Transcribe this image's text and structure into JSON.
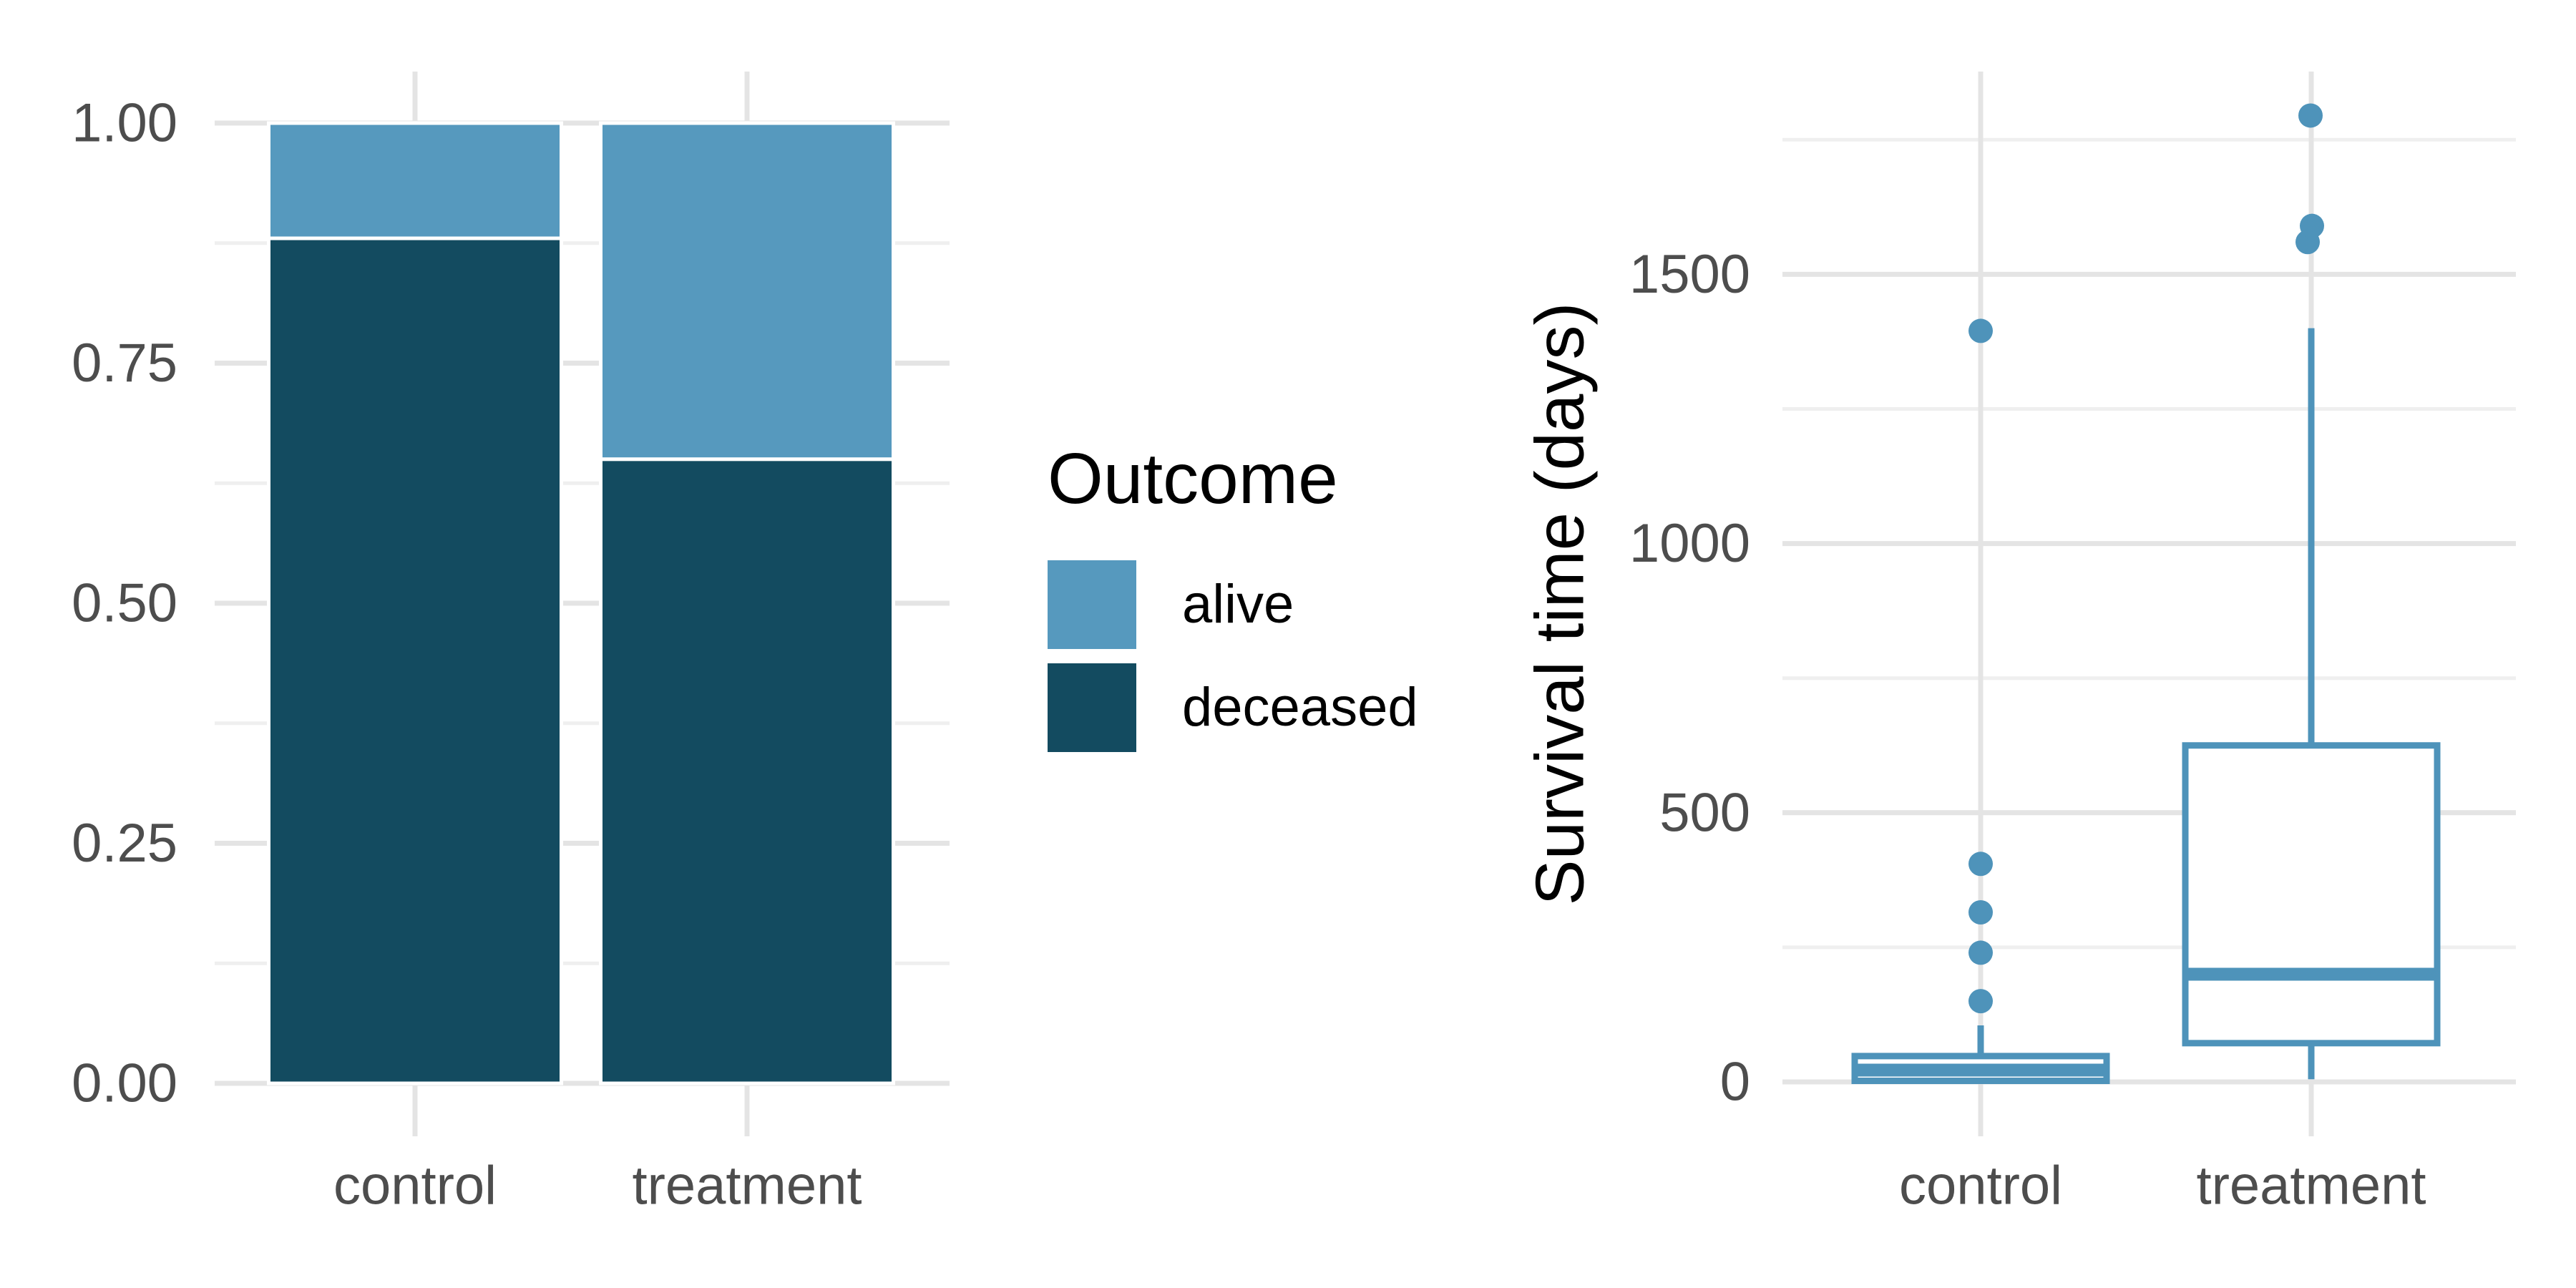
{
  "colors": {
    "background": "#ffffff",
    "alive": "#5699be",
    "deceased": "#134b60",
    "boxplot_blue": "#4e93ba",
    "grid_major": "#e4e4e4",
    "grid_minor": "#efefef",
    "axis_text": "#4d4d4d",
    "title_text": "#000000",
    "bar_separator": "#ffffff"
  },
  "legend": {
    "title": "Outcome",
    "items": [
      {
        "label": "alive",
        "color": "#5699be"
      },
      {
        "label": "deceased",
        "color": "#134b60"
      }
    ]
  },
  "chart_data": [
    {
      "type": "bar",
      "stacked": true,
      "position": "fill",
      "title": "",
      "xlabel": "",
      "ylabel": "",
      "categories": [
        "control",
        "treatment"
      ],
      "series": [
        {
          "name": "alive",
          "values": [
            0.12,
            0.35
          ]
        },
        {
          "name": "deceased",
          "values": [
            0.88,
            0.65
          ]
        }
      ],
      "yticks": [
        {
          "value": 0,
          "label": "0.00"
        },
        {
          "value": 0.25,
          "label": "0.25"
        },
        {
          "value": 0.5,
          "label": "0.50"
        },
        {
          "value": 0.75,
          "label": "0.75"
        },
        {
          "value": 1,
          "label": "1.00"
        }
      ],
      "ylim": [
        0,
        1
      ],
      "grid": true,
      "legend_position": "right"
    },
    {
      "type": "boxplot",
      "title": "",
      "xlabel": "",
      "ylabel": "Survival time (days)",
      "categories": [
        "control",
        "treatment"
      ],
      "yticks": [
        {
          "value": 0,
          "label": "0"
        },
        {
          "value": 500,
          "label": "500"
        },
        {
          "value": 1000,
          "label": "1000"
        },
        {
          "value": 1500,
          "label": "1500"
        }
      ],
      "ylim": [
        0,
        1810
      ],
      "grid": true,
      "boxes": [
        {
          "category": "control",
          "whisker_low": 2,
          "q1": 2,
          "median": 22,
          "q3": 48,
          "whisker_high": 105,
          "outliers": [
            150,
            240,
            315,
            405,
            1395
          ]
        },
        {
          "category": "treatment",
          "whisker_low": 5,
          "q1": 72,
          "median": 200,
          "q3": 625,
          "whisker_high": 1400,
          "outliers": [
            1560,
            1590,
            1795
          ]
        }
      ]
    }
  ]
}
